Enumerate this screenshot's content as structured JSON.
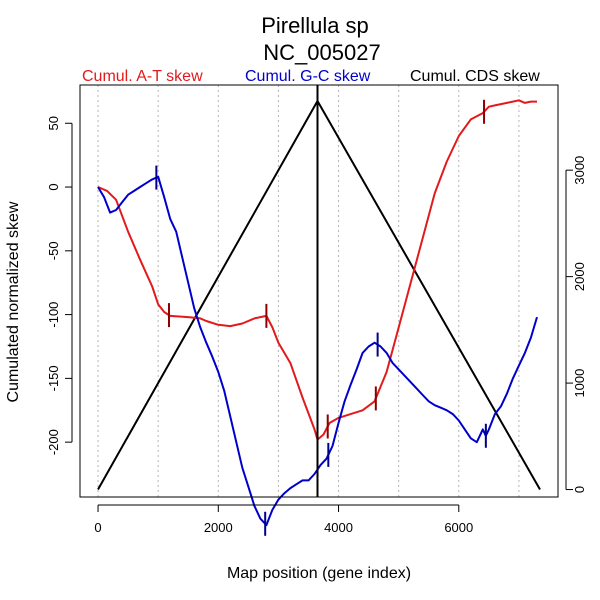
{
  "chart_data": {
    "type": "line",
    "title": "Pirellula sp",
    "subtitle": "NC_005027",
    "xlabel": "Map position (gene index)",
    "ylabel": "Cumulated normalized skew",
    "xlim": [
      -300,
      7650
    ],
    "ylim": [
      -243,
      80
    ],
    "y2lim": [
      -70,
      3800
    ],
    "x_ticks": [
      0,
      2000,
      4000,
      6000
    ],
    "x_gridlines": [
      0,
      1000,
      2000,
      3000,
      4000,
      5000,
      6000,
      7000
    ],
    "y_ticks": [
      50,
      0,
      -50,
      -100,
      -150,
      -200
    ],
    "y2_ticks": [
      0,
      1000,
      2000,
      3000
    ],
    "colors": {
      "at": "#e31a1c",
      "gc": "#0000cc",
      "cds": "#000000",
      "at_marker": "#8b0000",
      "gc_marker": "#00008b",
      "grid": "#b4b4b4"
    },
    "series": [
      {
        "name": "Cumul. A-T skew",
        "color": "#e31a1c",
        "axis": "left",
        "x": [
          0,
          150,
          300,
          500,
          700,
          900,
          1000,
          1100,
          1200,
          1500,
          1700,
          1800,
          2000,
          2200,
          2400,
          2600,
          2800,
          2900,
          3000,
          3200,
          3400,
          3600,
          3650,
          3750,
          3850,
          4000,
          4200,
          4400,
          4600,
          4800,
          5000,
          5200,
          5400,
          5600,
          5800,
          6000,
          6200,
          6400,
          6500,
          6600,
          6700,
          6800,
          6900,
          7000,
          7100,
          7200,
          7300
        ],
        "values": [
          0,
          -3,
          -10,
          -35,
          -57,
          -78,
          -92,
          -98,
          -101,
          -102,
          -103,
          -105,
          -108,
          -109,
          -107,
          -103,
          -101,
          -110,
          -122,
          -138,
          -165,
          -190,
          -198,
          -194,
          -185,
          -181,
          -178,
          -175,
          -168,
          -145,
          -110,
          -75,
          -40,
          -5,
          20,
          40,
          53,
          58,
          63,
          64,
          65,
          66,
          67,
          68,
          66,
          67,
          67
        ]
      },
      {
        "name": "Cumul. G-C skew",
        "color": "#0000cc",
        "axis": "left",
        "x": [
          0,
          100,
          200,
          300,
          400,
          500,
          600,
          700,
          800,
          900,
          1000,
          1100,
          1200,
          1300,
          1400,
          1500,
          1600,
          1700,
          1800,
          1900,
          2000,
          2100,
          2200,
          2300,
          2400,
          2500,
          2600,
          2700,
          2800,
          2900,
          3000,
          3100,
          3200,
          3300,
          3400,
          3500,
          3600,
          3700,
          3800,
          3900,
          4000,
          4100,
          4200,
          4300,
          4400,
          4500,
          4600,
          4700,
          4800,
          4900,
          5000,
          5100,
          5200,
          5300,
          5400,
          5500,
          5600,
          5700,
          5800,
          5900,
          6000,
          6100,
          6200,
          6300,
          6400,
          6450,
          6500,
          6600,
          6700,
          6800,
          6900,
          7000,
          7100,
          7200,
          7300
        ],
        "values": [
          0,
          -8,
          -20,
          -18,
          -12,
          -6,
          -3,
          0,
          3,
          6,
          8,
          -8,
          -25,
          -35,
          -55,
          -75,
          -95,
          -110,
          -122,
          -133,
          -145,
          -160,
          -180,
          -200,
          -220,
          -235,
          -250,
          -260,
          -265,
          -253,
          -245,
          -240,
          -236,
          -233,
          -230,
          -230,
          -225,
          -218,
          -213,
          -203,
          -185,
          -168,
          -155,
          -143,
          -130,
          -125,
          -122,
          -125,
          -130,
          -138,
          -143,
          -148,
          -153,
          -158,
          -163,
          -168,
          -171,
          -173,
          -175,
          -178,
          -183,
          -190,
          -197,
          -200,
          -190,
          -195,
          -190,
          -178,
          -172,
          -162,
          -150,
          -140,
          -130,
          -118,
          -102
        ]
      },
      {
        "name": "Cumul. CDS skew",
        "color": "#000000",
        "axis": "right",
        "x": [
          0,
          3650,
          7350
        ],
        "values": [
          0,
          3650,
          0
        ]
      }
    ],
    "vertical_line": {
      "x": 3650
    },
    "tick_marks": {
      "at": [
        1180,
        2800,
        3820,
        4620,
        6420
      ],
      "gc": [
        970,
        2780,
        3830,
        4650,
        6450
      ]
    }
  }
}
